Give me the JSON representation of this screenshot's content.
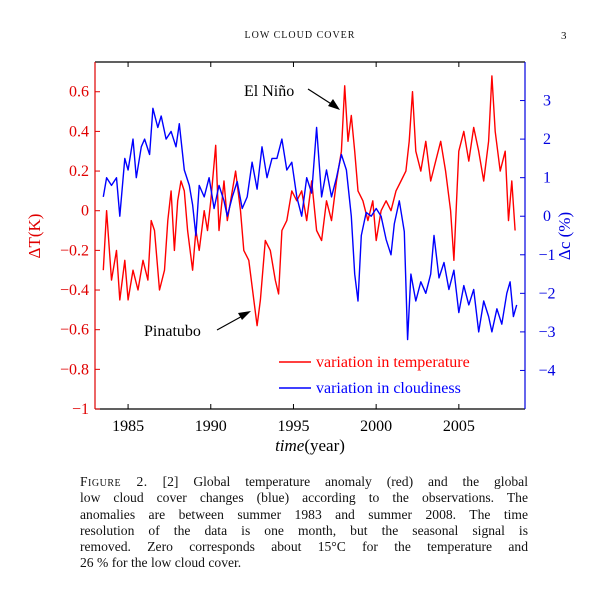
{
  "header": {
    "running_title": "LOW CLOUD COVER",
    "page_number": "3"
  },
  "chart_data": {
    "type": "line",
    "title": "",
    "xlabel": "time(year)",
    "xlabel_italic": "time",
    "xlabel_rest": "(year)",
    "ylabel_left": "ΔT(K)",
    "ylabel_right": "Δc (%)",
    "xlim": [
      1983,
      2009
    ],
    "ylim_left": [
      -1,
      0.75
    ],
    "ylim_right": [
      -5,
      4
    ],
    "x_ticks": [
      1985,
      1990,
      1995,
      2000,
      2005
    ],
    "x_tick_labels": [
      "1985",
      "1990",
      "1995",
      "2000",
      "2005"
    ],
    "y_left_ticks": [
      0.6,
      0.4,
      0.2,
      0,
      -0.2,
      -0.4,
      -0.6,
      -0.8,
      -1
    ],
    "y_left_tick_labels": [
      "0.6",
      "0.4",
      "0.2",
      "0",
      "−0.2",
      "−0.4",
      "−0.6",
      "−0.8",
      "−1"
    ],
    "y_right_ticks": [
      3,
      2,
      1,
      0,
      -1,
      -2,
      -3,
      -4
    ],
    "y_right_tick_labels": [
      "3",
      "2",
      "1",
      "0",
      "−1",
      "−2",
      "−3",
      "−4"
    ],
    "grid": false,
    "legend_position": "bottom-right",
    "colors": {
      "temperature": "#ff0000",
      "cloudiness": "#0000ff",
      "axis_left": "#e00000",
      "axis_right": "#0000e0"
    },
    "annotations": [
      {
        "text": "El Niño",
        "x": 1998.1,
        "y": 0.63,
        "axis": "left"
      },
      {
        "text": "Pinatubo",
        "x": 1992.6,
        "y": -0.5,
        "axis": "left"
      }
    ],
    "series": [
      {
        "name": "variation in temperature",
        "axis": "left",
        "x": [
          1983.5,
          1983.7,
          1984.0,
          1984.3,
          1984.5,
          1984.8,
          1985.0,
          1985.3,
          1985.6,
          1985.9,
          1986.2,
          1986.4,
          1986.6,
          1986.9,
          1987.2,
          1987.4,
          1987.6,
          1987.8,
          1988.0,
          1988.2,
          1988.4,
          1988.6,
          1988.9,
          1989.1,
          1989.3,
          1989.6,
          1989.8,
          1990.0,
          1990.3,
          1990.5,
          1990.8,
          1991.0,
          1991.3,
          1991.5,
          1991.8,
          1992.0,
          1992.3,
          1992.6,
          1992.8,
          1993.0,
          1993.3,
          1993.6,
          1993.9,
          1994.1,
          1994.3,
          1994.6,
          1994.9,
          1995.2,
          1995.5,
          1995.8,
          1996.1,
          1996.4,
          1996.7,
          1997.0,
          1997.3,
          1997.6,
          1997.9,
          1998.1,
          1998.3,
          1998.5,
          1998.7,
          1998.9,
          1999.2,
          1999.5,
          1999.8,
          2000.0,
          2000.3,
          2000.6,
          2000.9,
          2001.2,
          2001.5,
          2001.8,
          2002.0,
          2002.2,
          2002.4,
          2002.7,
          2003.0,
          2003.3,
          2003.6,
          2003.9,
          2004.2,
          2004.5,
          2004.7,
          2005.0,
          2005.3,
          2005.6,
          2005.9,
          2006.2,
          2006.5,
          2006.8,
          2007.0,
          2007.2,
          2007.5,
          2007.8,
          2008.0,
          2008.2,
          2008.4
        ],
        "values": [
          -0.3,
          0.0,
          -0.35,
          -0.2,
          -0.45,
          -0.25,
          -0.45,
          -0.3,
          -0.4,
          -0.25,
          -0.35,
          -0.05,
          -0.1,
          -0.4,
          -0.3,
          -0.05,
          0.1,
          -0.2,
          0.05,
          0.15,
          0.1,
          -0.1,
          -0.3,
          -0.1,
          -0.2,
          0.0,
          -0.1,
          0.05,
          0.33,
          -0.1,
          0.15,
          -0.05,
          0.1,
          0.2,
          0.0,
          -0.2,
          -0.25,
          -0.45,
          -0.58,
          -0.45,
          -0.15,
          -0.2,
          -0.35,
          -0.42,
          -0.1,
          -0.05,
          0.1,
          0.05,
          0.1,
          -0.05,
          0.15,
          -0.1,
          -0.15,
          0.05,
          -0.05,
          0.15,
          0.3,
          0.63,
          0.35,
          0.48,
          0.3,
          0.1,
          0.05,
          -0.05,
          0.05,
          -0.15,
          0.0,
          0.05,
          0.0,
          0.1,
          0.15,
          0.2,
          0.35,
          0.6,
          0.3,
          0.2,
          0.35,
          0.15,
          0.25,
          0.35,
          0.2,
          0.0,
          -0.25,
          0.3,
          0.4,
          0.25,
          0.42,
          0.3,
          0.15,
          0.35,
          0.68,
          0.4,
          0.2,
          0.3,
          -0.05,
          0.15,
          -0.1
        ]
      },
      {
        "name": "variation in cloudiness",
        "axis": "right",
        "x": [
          1983.5,
          1983.7,
          1984.0,
          1984.3,
          1984.5,
          1984.8,
          1985.0,
          1985.3,
          1985.5,
          1985.8,
          1986.0,
          1986.3,
          1986.5,
          1986.8,
          1987.0,
          1987.3,
          1987.6,
          1987.9,
          1988.1,
          1988.4,
          1988.7,
          1988.9,
          1989.1,
          1989.3,
          1989.6,
          1989.9,
          1990.2,
          1990.5,
          1990.8,
          1991.0,
          1991.3,
          1991.6,
          1991.9,
          1992.2,
          1992.5,
          1992.8,
          1993.1,
          1993.4,
          1993.7,
          1994.0,
          1994.3,
          1994.6,
          1994.9,
          1995.2,
          1995.5,
          1995.8,
          1996.1,
          1996.4,
          1996.7,
          1997.0,
          1997.3,
          1997.6,
          1997.9,
          1998.2,
          1998.5,
          1998.7,
          1998.9,
          1999.1,
          1999.4,
          1999.7,
          2000.0,
          2000.3,
          2000.6,
          2000.9,
          2001.1,
          2001.4,
          2001.7,
          2001.9,
          2002.1,
          2002.4,
          2002.7,
          2003.0,
          2003.3,
          2003.5,
          2003.8,
          2004.1,
          2004.4,
          2004.7,
          2005.0,
          2005.3,
          2005.6,
          2005.9,
          2006.2,
          2006.5,
          2006.8,
          2007.0,
          2007.3,
          2007.6,
          2007.9,
          2008.1,
          2008.3,
          2008.5
        ],
        "values": [
          0.5,
          1.0,
          0.8,
          1.0,
          0.0,
          1.5,
          1.2,
          2.0,
          1.0,
          1.8,
          2.0,
          1.6,
          2.8,
          2.3,
          2.6,
          2.0,
          2.2,
          1.8,
          2.4,
          1.2,
          0.8,
          0.3,
          -0.5,
          0.8,
          0.5,
          1.0,
          0.2,
          0.8,
          0.4,
          0.0,
          0.5,
          0.9,
          0.2,
          0.5,
          1.4,
          0.7,
          1.8,
          1.0,
          1.5,
          1.5,
          2.0,
          1.2,
          1.4,
          0.5,
          0.0,
          1.0,
          0.6,
          2.3,
          0.5,
          1.2,
          0.5,
          1.0,
          1.6,
          1.2,
          0.0,
          -1.5,
          -2.2,
          -0.5,
          0.1,
          0.0,
          0.2,
          0.0,
          -0.6,
          -1.0,
          -0.2,
          0.4,
          -0.4,
          -3.2,
          -1.5,
          -2.2,
          -1.7,
          -2.0,
          -1.5,
          -0.5,
          -1.6,
          -1.2,
          -1.9,
          -1.4,
          -2.5,
          -1.8,
          -2.3,
          -1.9,
          -3.0,
          -2.2,
          -2.6,
          -3.0,
          -2.4,
          -2.8,
          -2.0,
          -1.7,
          -2.6,
          -2.3
        ]
      }
    ]
  },
  "caption": {
    "label": "Figure 2.",
    "lines": [
      "[2] Global temperature anomaly (red) and the global",
      "low cloud cover changes (blue) according to the observations. The",
      "anomalies are between summer 1983 and summer 2008. The time",
      "resolution of the data is one month, but the seasonal signal is",
      "removed.  Zero corresponds about 15°C for the temperature and",
      "26 % for the low cloud cover."
    ]
  }
}
